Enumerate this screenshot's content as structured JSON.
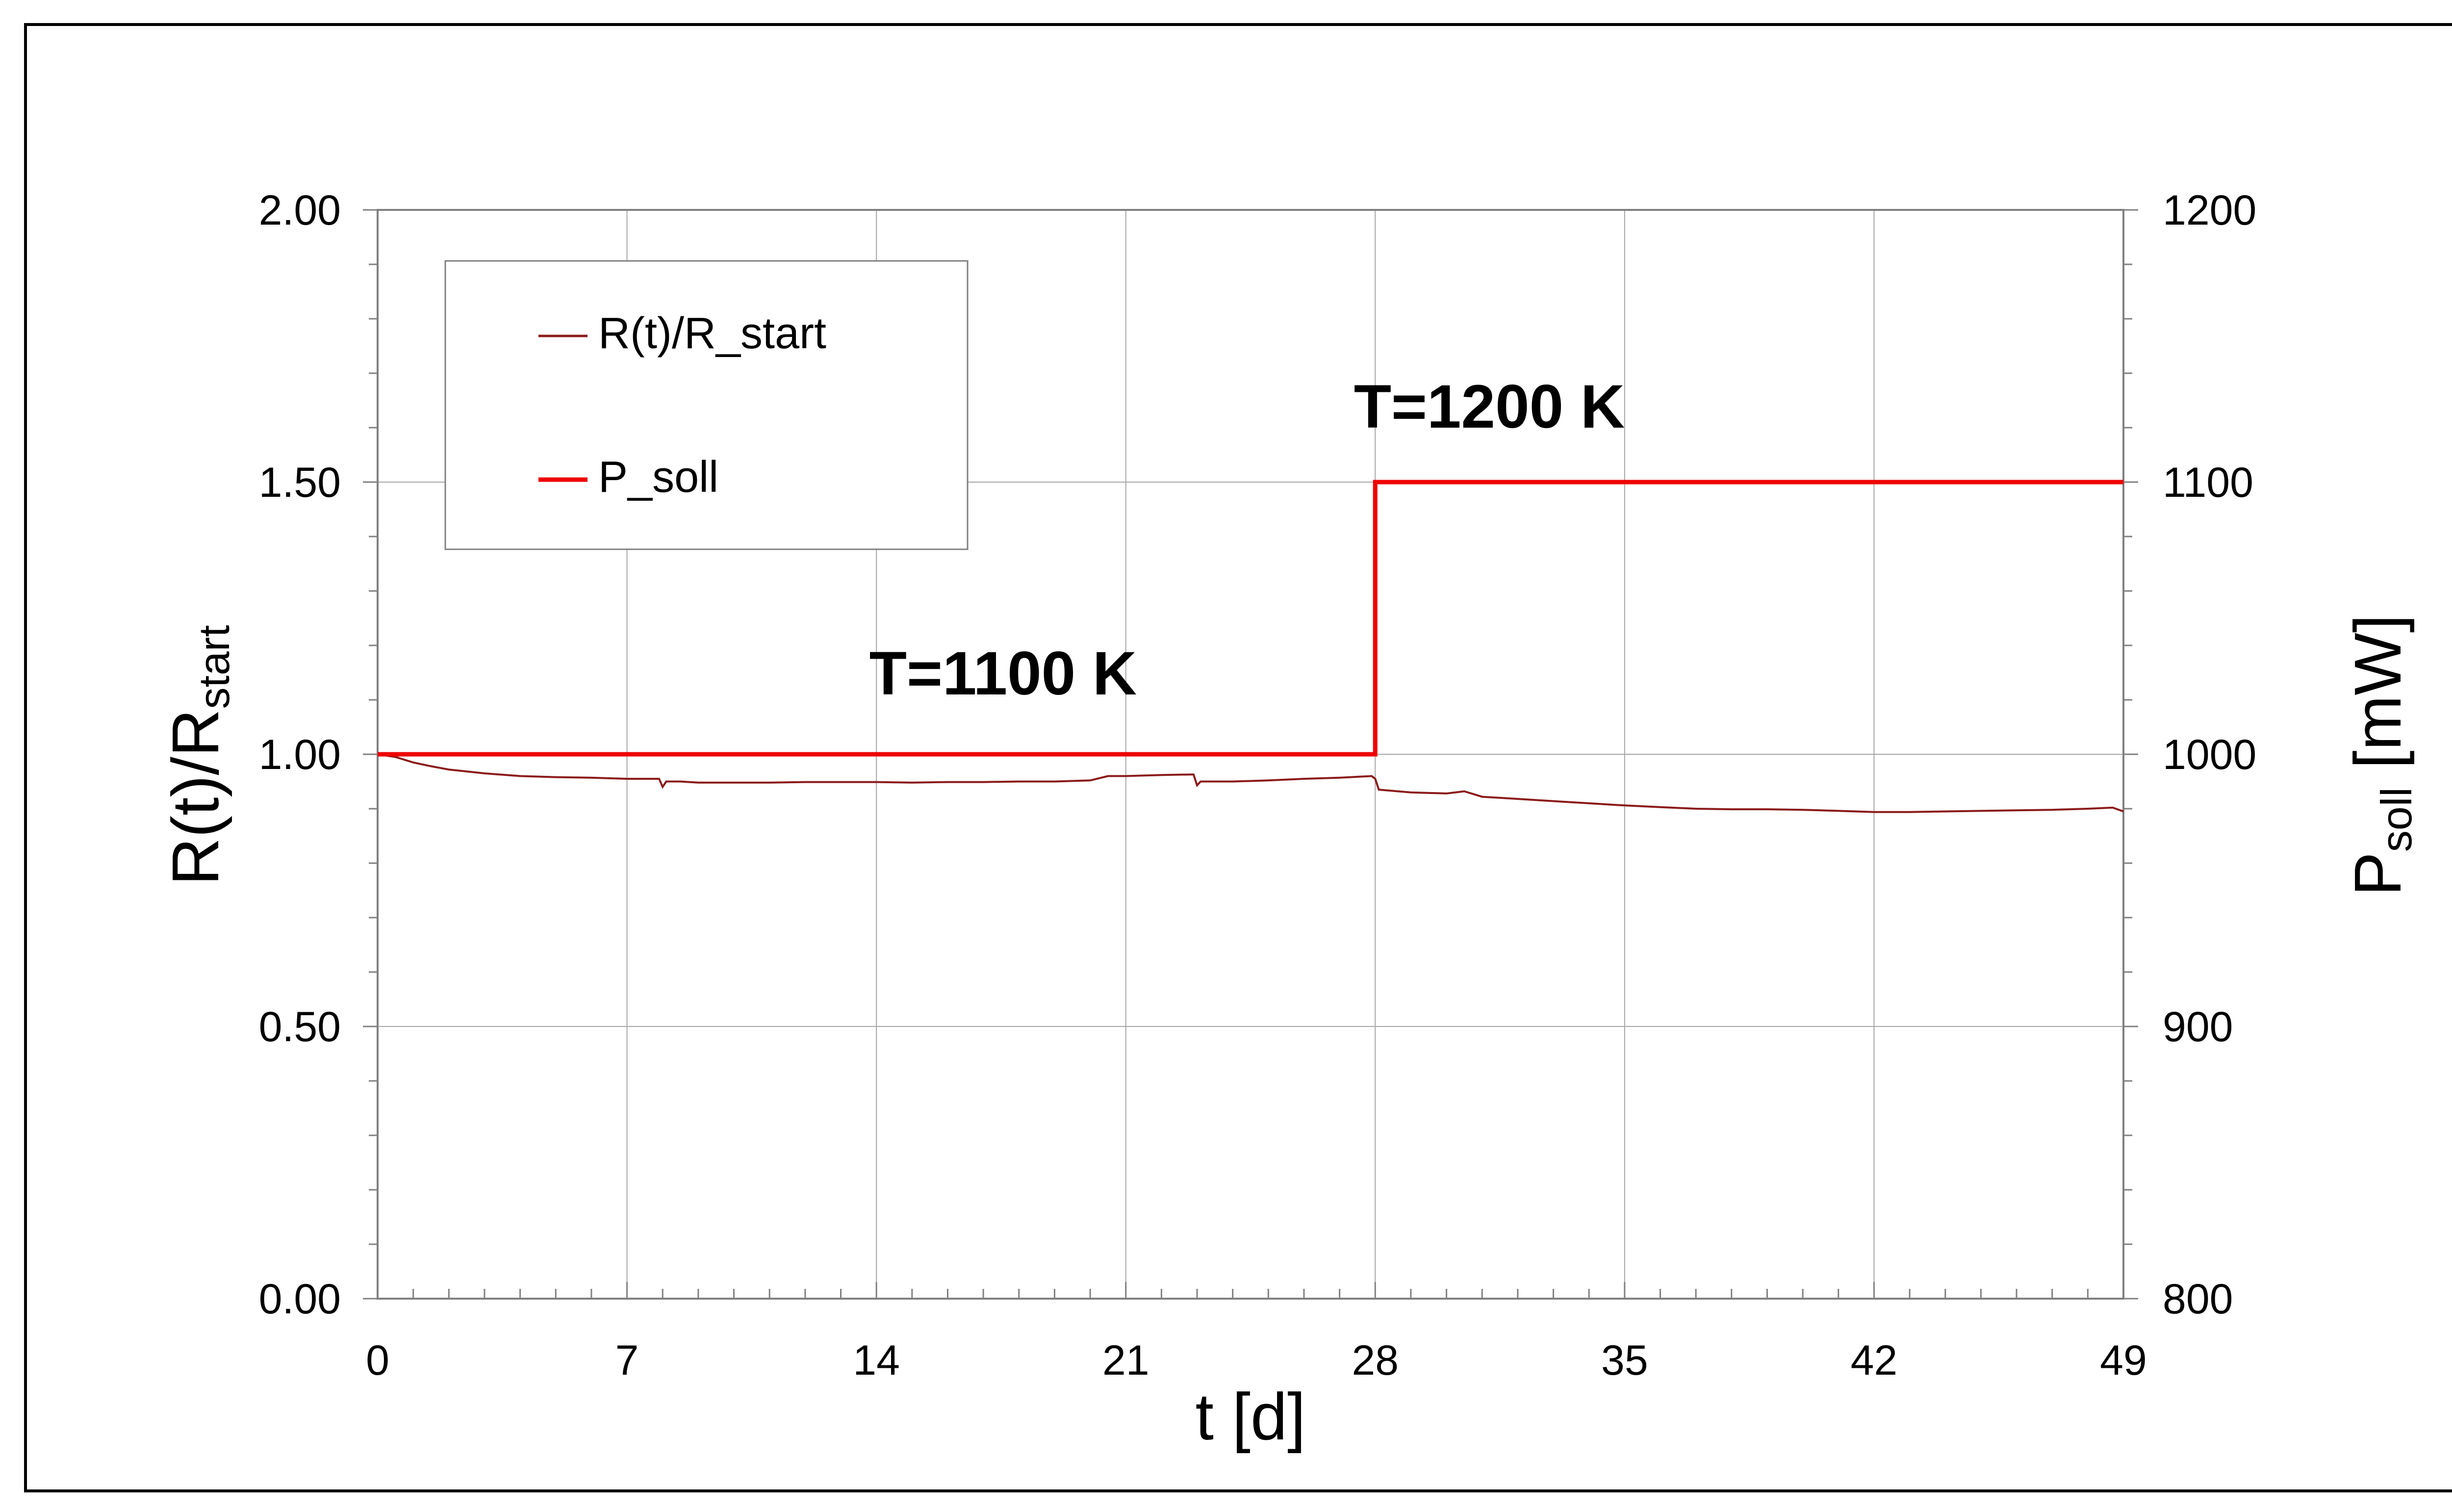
{
  "chart_data": {
    "type": "line",
    "xlabel": "t [d]",
    "ylabel_main": "R(t)/R",
    "ylabel_sub": "start",
    "y2label_main": "P",
    "y2label_sub": "soll",
    "y2label_suffix": " [mW]",
    "xlim": [
      0,
      49
    ],
    "ylim": [
      0,
      2.0
    ],
    "y2lim": [
      800,
      1200
    ],
    "grid": true,
    "legend_position": "top-left",
    "x_ticks": [
      {
        "value": 0,
        "label": "0"
      },
      {
        "value": 7,
        "label": "7"
      },
      {
        "value": 14,
        "label": "14"
      },
      {
        "value": 21,
        "label": "21"
      },
      {
        "value": 28,
        "label": "28"
      },
      {
        "value": 35,
        "label": "35"
      },
      {
        "value": 42,
        "label": "42"
      },
      {
        "value": 49,
        "label": "49"
      }
    ],
    "y_ticks": [
      {
        "value": 0.0,
        "label": "0.00"
      },
      {
        "value": 0.5,
        "label": "0.50"
      },
      {
        "value": 1.0,
        "label": "1.00"
      },
      {
        "value": 1.5,
        "label": "1.50"
      },
      {
        "value": 2.0,
        "label": "2.00"
      }
    ],
    "y2_ticks": [
      {
        "value": 800,
        "label": "800"
      },
      {
        "value": 900,
        "label": "900"
      },
      {
        "value": 1000,
        "label": "1000"
      },
      {
        "value": 1100,
        "label": "1100"
      },
      {
        "value": 1200,
        "label": "1200"
      }
    ],
    "series": [
      {
        "name": "R(t)/R_start",
        "axis": "left",
        "color": "#8b1a1a",
        "x": [
          0,
          0.5,
          1,
          1.5,
          2,
          3,
          4,
          5,
          6,
          7,
          7.9,
          8.0,
          8.1,
          8.5,
          9,
          10,
          11,
          12,
          13,
          14,
          15,
          16,
          17,
          18,
          19,
          20,
          20.5,
          21,
          22,
          22.9,
          23.0,
          23.1,
          24,
          25,
          26,
          27,
          27.9,
          28.0,
          28.1,
          29,
          30,
          30.5,
          31,
          32,
          33,
          34,
          35,
          36,
          37,
          38,
          39,
          40,
          41,
          42,
          43,
          44,
          45,
          46,
          47,
          48,
          48.7,
          49
        ],
        "y": [
          1.0,
          0.995,
          0.985,
          0.978,
          0.972,
          0.965,
          0.96,
          0.958,
          0.957,
          0.955,
          0.955,
          0.94,
          0.95,
          0.95,
          0.948,
          0.948,
          0.948,
          0.949,
          0.949,
          0.949,
          0.948,
          0.949,
          0.949,
          0.95,
          0.95,
          0.952,
          0.96,
          0.96,
          0.962,
          0.963,
          0.943,
          0.95,
          0.95,
          0.952,
          0.955,
          0.957,
          0.96,
          0.955,
          0.935,
          0.93,
          0.928,
          0.932,
          0.922,
          0.918,
          0.914,
          0.91,
          0.906,
          0.903,
          0.9,
          0.899,
          0.899,
          0.898,
          0.896,
          0.894,
          0.894,
          0.895,
          0.896,
          0.897,
          0.898,
          0.9,
          0.902,
          0.895
        ]
      },
      {
        "name": "P_soll",
        "axis": "right",
        "color": "#ee0000",
        "step": true,
        "x": [
          0,
          28,
          28,
          49
        ],
        "y": [
          1000,
          1000,
          1100,
          1100
        ]
      }
    ],
    "legend": [
      {
        "label": "R(t)/R_start",
        "color": "#8b1a1a"
      },
      {
        "label": "P_soll",
        "color": "#ee0000"
      }
    ],
    "annotations": [
      {
        "text": "T=1100 K",
        "x": 13.8,
        "y": 1.11
      },
      {
        "text": "T=1200 K",
        "x": 27.4,
        "y": 1.6
      }
    ]
  }
}
